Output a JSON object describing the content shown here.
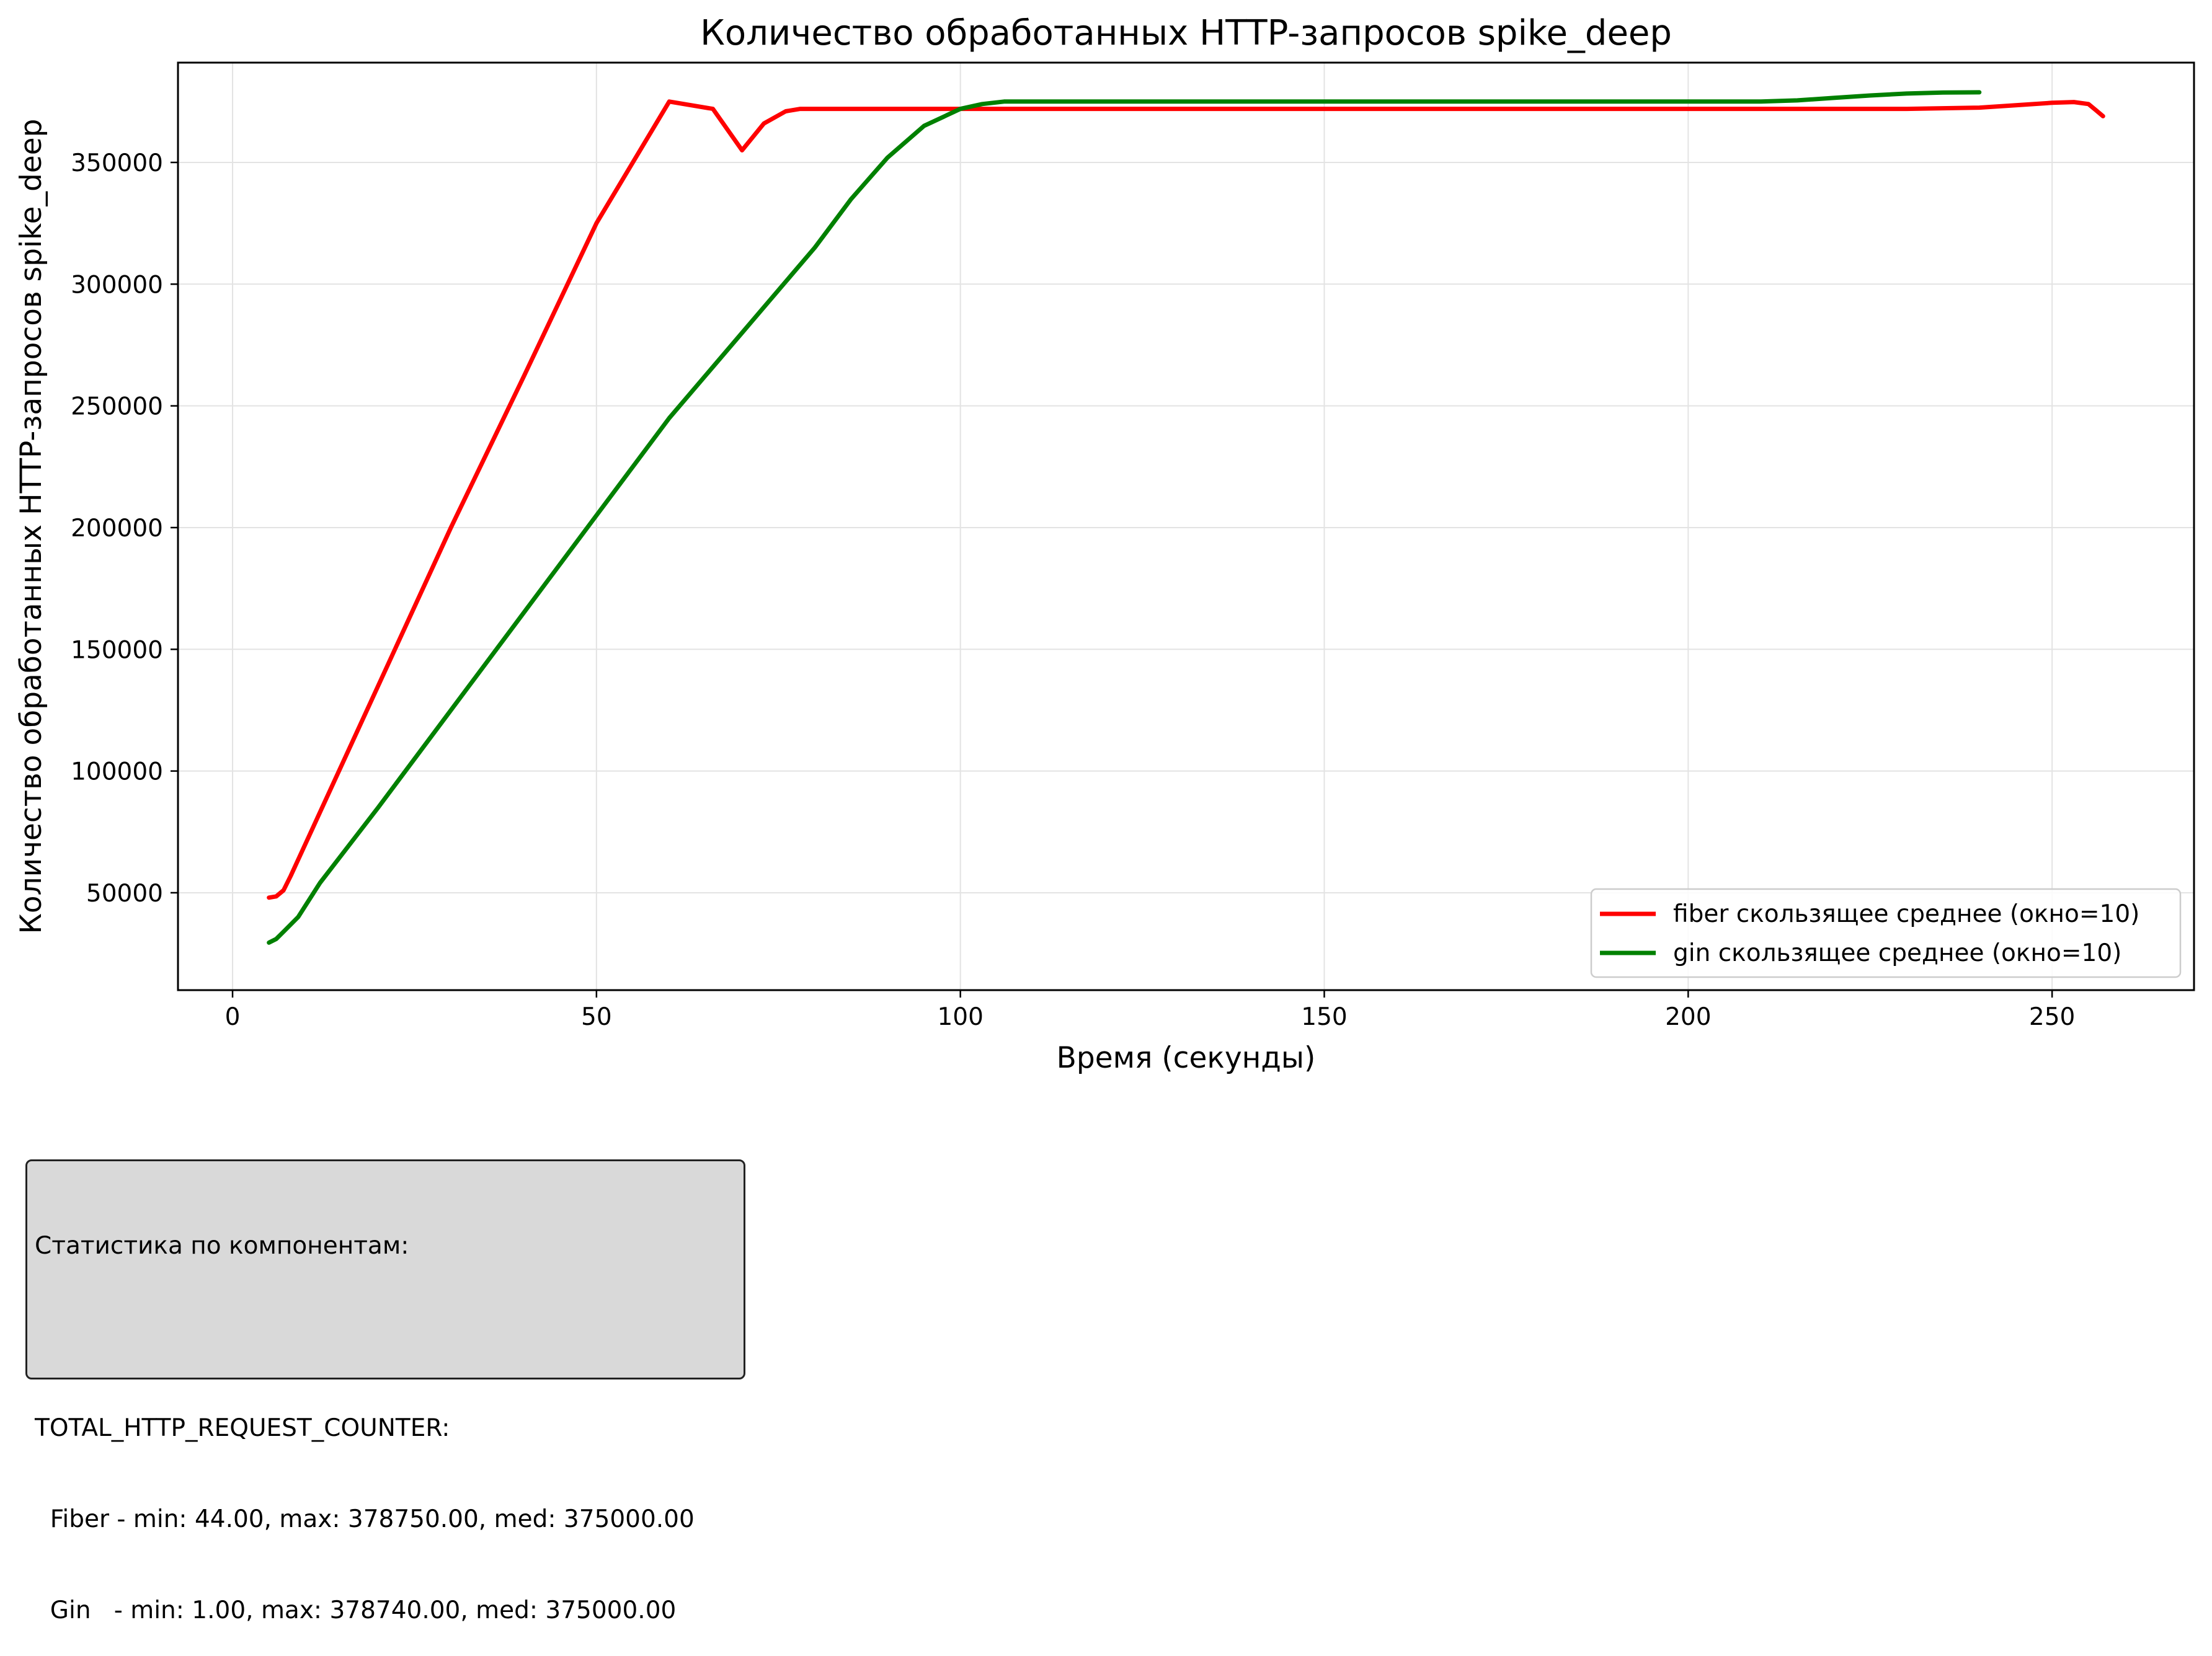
{
  "chart_data": {
    "type": "line",
    "title": "Количество обработанных HTTP-запросов spike_deep",
    "xlabel": "Время (секунды)",
    "ylabel": "Количество обработанных HTTP-запросов spike_deep",
    "xlim": [
      -7.5,
      269.5
    ],
    "ylim": [
      10000,
      391000
    ],
    "xticks": [
      0,
      50,
      100,
      150,
      200,
      250
    ],
    "xtick_labels": [
      "0",
      "50",
      "100",
      "150",
      "200",
      "250"
    ],
    "yticks": [
      50000,
      100000,
      150000,
      200000,
      250000,
      300000,
      350000
    ],
    "ytick_labels": [
      "50000",
      "100000",
      "150000",
      "200000",
      "250000",
      "300000",
      "350000"
    ],
    "grid": true,
    "legend_position": "lower-right",
    "series": [
      {
        "name": "fiber скользящее среднее (окно=10)",
        "color": "#ff0000",
        "x": [
          5,
          6,
          7,
          8,
          10,
          20,
          30,
          40,
          50,
          60,
          66,
          70,
          73,
          76,
          78,
          80,
          82,
          90,
          100,
          150,
          200,
          230,
          240,
          245,
          250,
          253,
          255,
          256,
          257
        ],
        "y": [
          48000,
          48500,
          51000,
          57000,
          70000,
          135000,
          200000,
          262000,
          325000,
          375000,
          372000,
          355000,
          366000,
          371000,
          372000,
          372000,
          372000,
          372000,
          372000,
          372000,
          372000,
          372000,
          372500,
          373500,
          374500,
          374800,
          374000,
          371500,
          369000
        ]
      },
      {
        "name": "gin скользящее среднее (окно=10)",
        "color": "#008000",
        "x": [
          5,
          6,
          7,
          9,
          12,
          20,
          30,
          40,
          50,
          60,
          70,
          80,
          85,
          90,
          95,
          100,
          103,
          106,
          110,
          150,
          200,
          210,
          215,
          220,
          225,
          230,
          235,
          240
        ],
        "y": [
          29500,
          31000,
          34000,
          40000,
          54000,
          85000,
          125000,
          165000,
          205000,
          245000,
          280000,
          315000,
          335000,
          352000,
          365000,
          372000,
          374000,
          375000,
          375000,
          375000,
          375000,
          375000,
          375500,
          376500,
          377500,
          378300,
          378700,
          378800
        ]
      }
    ]
  },
  "stats": {
    "lines": [
      "Статистика по компонентам:",
      "",
      "TOTAL_HTTP_REQUEST_COUNTER:",
      "  Fiber - min: 44.00, max: 378750.00, med: 375000.00",
      "  Gin   - min: 1.00, max: 378740.00, med: 375000.00"
    ]
  }
}
